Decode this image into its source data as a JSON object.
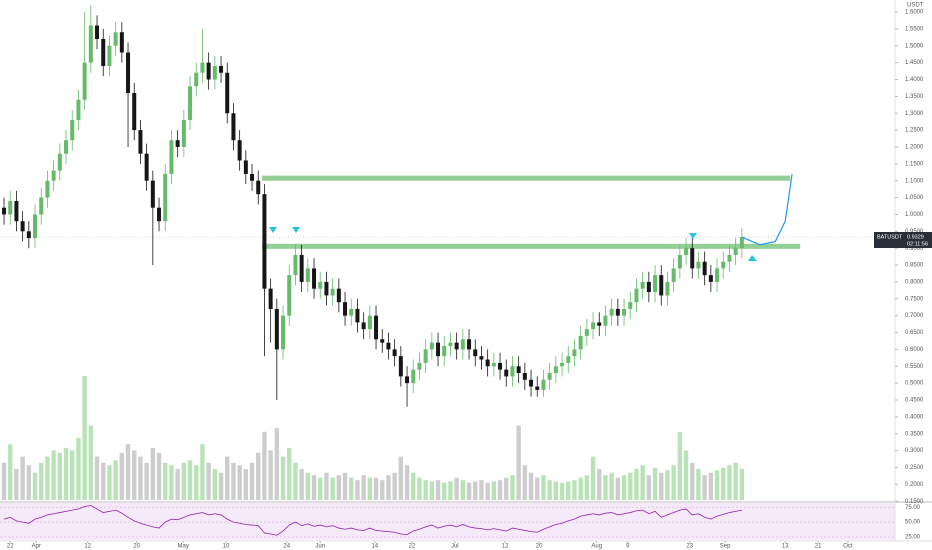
{
  "chart_data": {
    "type": "candlestick",
    "symbol": "BATUSDT",
    "currency": "USDT",
    "last_price": 0.9329,
    "countdown": "02:11:56",
    "up_color": "#66bb6a",
    "down_color": "#161616",
    "xlim": [
      -0.65,
      143.7
    ],
    "ylim": [
      0.1477,
      1.6356
    ],
    "x": [
      0,
      1,
      2,
      3,
      4,
      5,
      6,
      7,
      8,
      9,
      10,
      11,
      12,
      13,
      14,
      15,
      16,
      17,
      18,
      19,
      20,
      21,
      22,
      23,
      24,
      25,
      26,
      27,
      28,
      29,
      30,
      31,
      32,
      33,
      34,
      35,
      36,
      37,
      38,
      39,
      40,
      41,
      42,
      43,
      44,
      45,
      46,
      47,
      48,
      49,
      50,
      51,
      52,
      53,
      54,
      55,
      56,
      57,
      58,
      59,
      60,
      61,
      62,
      63,
      64,
      65,
      66,
      67,
      68,
      69,
      70,
      71,
      72,
      73,
      74,
      75,
      76,
      77,
      78,
      79,
      80,
      81,
      82,
      83,
      84,
      85,
      86,
      87,
      88,
      89,
      90,
      91,
      92,
      93,
      94,
      95,
      96,
      97,
      98,
      99,
      100,
      101,
      102,
      103,
      104,
      105,
      106,
      107,
      108,
      109,
      110,
      111,
      112,
      113,
      114,
      115,
      116,
      117,
      118,
      119
    ],
    "open": [
      1.02,
      1.0,
      1.04,
      0.98,
      0.95,
      0.93,
      1.0,
      1.05,
      1.1,
      1.13,
      1.18,
      1.22,
      1.28,
      1.34,
      1.45,
      1.56,
      1.52,
      1.44,
      1.5,
      1.54,
      1.48,
      1.36,
      1.25,
      1.18,
      1.1,
      1.02,
      0.98,
      1.12,
      1.22,
      1.2,
      1.28,
      1.38,
      1.42,
      1.45,
      1.4,
      1.44,
      1.42,
      1.3,
      1.22,
      1.16,
      1.12,
      1.1,
      1.06,
      0.78,
      0.72,
      0.6,
      0.7,
      0.82,
      0.88,
      0.8,
      0.84,
      0.78,
      0.8,
      0.76,
      0.78,
      0.74,
      0.7,
      0.72,
      0.68,
      0.66,
      0.7,
      0.63,
      0.62,
      0.6,
      0.58,
      0.52,
      0.5,
      0.54,
      0.56,
      0.6,
      0.62,
      0.58,
      0.61,
      0.62,
      0.6,
      0.63,
      0.6,
      0.58,
      0.57,
      0.55,
      0.56,
      0.54,
      0.52,
      0.55,
      0.53,
      0.51,
      0.49,
      0.48,
      0.51,
      0.53,
      0.55,
      0.56,
      0.58,
      0.6,
      0.64,
      0.66,
      0.68,
      0.67,
      0.7,
      0.72,
      0.7,
      0.72,
      0.74,
      0.78,
      0.8,
      0.77,
      0.82,
      0.76,
      0.8,
      0.84,
      0.88,
      0.9,
      0.84,
      0.86,
      0.82,
      0.8,
      0.84,
      0.86,
      0.88,
      0.9
    ],
    "high": [
      1.05,
      1.07,
      1.07,
      1.01,
      0.98,
      1.03,
      1.08,
      1.13,
      1.16,
      1.21,
      1.25,
      1.31,
      1.37,
      1.6,
      1.62,
      1.59,
      1.55,
      1.53,
      1.57,
      1.57,
      1.51,
      1.39,
      1.28,
      1.21,
      1.13,
      1.05,
      1.15,
      1.25,
      1.25,
      1.31,
      1.41,
      1.45,
      1.55,
      1.48,
      1.47,
      1.47,
      1.45,
      1.33,
      1.25,
      1.19,
      1.15,
      1.13,
      1.09,
      0.81,
      0.75,
      0.73,
      0.85,
      0.91,
      0.91,
      0.87,
      0.87,
      0.83,
      0.83,
      0.81,
      0.81,
      0.77,
      0.75,
      0.75,
      0.71,
      0.73,
      0.73,
      0.66,
      0.65,
      0.63,
      0.61,
      0.55,
      0.57,
      0.59,
      0.63,
      0.65,
      0.65,
      0.64,
      0.65,
      0.65,
      0.66,
      0.66,
      0.63,
      0.61,
      0.6,
      0.59,
      0.59,
      0.57,
      0.58,
      0.58,
      0.56,
      0.54,
      0.52,
      0.54,
      0.56,
      0.58,
      0.59,
      0.61,
      0.63,
      0.67,
      0.69,
      0.71,
      0.71,
      0.73,
      0.75,
      0.75,
      0.75,
      0.77,
      0.81,
      0.83,
      0.83,
      0.85,
      0.85,
      0.83,
      0.87,
      0.91,
      0.93,
      0.93,
      0.89,
      0.89,
      0.85,
      0.87,
      0.89,
      0.91,
      0.93,
      0.96
    ],
    "low": [
      0.97,
      0.97,
      0.95,
      0.92,
      0.9,
      0.9,
      0.97,
      1.02,
      1.07,
      1.1,
      1.15,
      1.19,
      1.25,
      1.31,
      1.42,
      1.49,
      1.41,
      1.41,
      1.47,
      1.45,
      1.2,
      1.22,
      1.15,
      1.07,
      0.85,
      0.95,
      0.95,
      1.09,
      1.17,
      1.17,
      1.25,
      1.35,
      1.39,
      1.37,
      1.37,
      1.39,
      1.27,
      1.19,
      1.13,
      1.09,
      1.07,
      1.03,
      0.58,
      0.62,
      0.45,
      0.57,
      0.67,
      0.79,
      0.77,
      0.77,
      0.75,
      0.75,
      0.73,
      0.73,
      0.71,
      0.67,
      0.67,
      0.65,
      0.63,
      0.63,
      0.6,
      0.59,
      0.57,
      0.55,
      0.49,
      0.43,
      0.47,
      0.51,
      0.53,
      0.57,
      0.55,
      0.55,
      0.58,
      0.57,
      0.57,
      0.57,
      0.55,
      0.54,
      0.52,
      0.52,
      0.51,
      0.49,
      0.49,
      0.5,
      0.48,
      0.46,
      0.46,
      0.46,
      0.48,
      0.5,
      0.52,
      0.53,
      0.55,
      0.57,
      0.61,
      0.63,
      0.64,
      0.64,
      0.67,
      0.67,
      0.67,
      0.69,
      0.71,
      0.75,
      0.74,
      0.74,
      0.73,
      0.73,
      0.77,
      0.81,
      0.85,
      0.81,
      0.81,
      0.79,
      0.77,
      0.77,
      0.81,
      0.83,
      0.85,
      0.87
    ],
    "close": [
      1.0,
      1.04,
      0.98,
      0.95,
      0.93,
      1.0,
      1.05,
      1.1,
      1.13,
      1.18,
      1.22,
      1.28,
      1.34,
      1.45,
      1.56,
      1.52,
      1.44,
      1.5,
      1.54,
      1.48,
      1.36,
      1.25,
      1.18,
      1.1,
      1.02,
      0.98,
      1.12,
      1.22,
      1.2,
      1.28,
      1.38,
      1.42,
      1.45,
      1.4,
      1.44,
      1.42,
      1.3,
      1.22,
      1.16,
      1.12,
      1.1,
      1.06,
      0.78,
      0.72,
      0.6,
      0.7,
      0.82,
      0.88,
      0.8,
      0.84,
      0.78,
      0.8,
      0.76,
      0.78,
      0.74,
      0.7,
      0.72,
      0.68,
      0.66,
      0.7,
      0.63,
      0.62,
      0.6,
      0.58,
      0.52,
      0.5,
      0.54,
      0.56,
      0.6,
      0.62,
      0.58,
      0.61,
      0.62,
      0.6,
      0.63,
      0.6,
      0.58,
      0.57,
      0.55,
      0.56,
      0.54,
      0.52,
      0.55,
      0.53,
      0.51,
      0.49,
      0.48,
      0.51,
      0.53,
      0.55,
      0.56,
      0.58,
      0.6,
      0.64,
      0.66,
      0.68,
      0.67,
      0.7,
      0.72,
      0.7,
      0.72,
      0.74,
      0.78,
      0.8,
      0.77,
      0.82,
      0.76,
      0.8,
      0.84,
      0.88,
      0.9,
      0.84,
      0.86,
      0.82,
      0.8,
      0.84,
      0.86,
      0.88,
      0.9,
      0.9329
    ],
    "yticks": [
      {
        "value": 0.15,
        "label": "0.1500"
      },
      {
        "value": 0.2,
        "label": "0.2000"
      },
      {
        "value": 0.25,
        "label": "0.2500"
      },
      {
        "value": 0.3,
        "label": "0.3000"
      },
      {
        "value": 0.35,
        "label": "0.3500"
      },
      {
        "value": 0.4,
        "label": "0.4000"
      },
      {
        "value": 0.45,
        "label": "0.4500"
      },
      {
        "value": 0.5,
        "label": "0.5000"
      },
      {
        "value": 0.55,
        "label": "0.5500"
      },
      {
        "value": 0.6,
        "label": "0.6000"
      },
      {
        "value": 0.65,
        "label": "0.6500"
      },
      {
        "value": 0.7,
        "label": "0.7000"
      },
      {
        "value": 0.75,
        "label": "0.7500"
      },
      {
        "value": 0.8,
        "label": "0.8000"
      },
      {
        "value": 0.85,
        "label": "0.8500"
      },
      {
        "value": 0.9,
        "label": "0.9000"
      },
      {
        "value": 0.95,
        "label": "0.9500"
      },
      {
        "value": 1.0,
        "label": "1.0000"
      },
      {
        "value": 1.05,
        "label": "1.0500"
      },
      {
        "value": 1.1,
        "label": "1.1000"
      },
      {
        "value": 1.15,
        "label": "1.1500"
      },
      {
        "value": 1.2,
        "label": "1.2000"
      },
      {
        "value": 1.25,
        "label": "1.2500"
      },
      {
        "value": 1.3,
        "label": "1.3000"
      },
      {
        "value": 1.35,
        "label": "1.3500"
      },
      {
        "value": 1.4,
        "label": "1.4000"
      },
      {
        "value": 1.45,
        "label": "1.4500"
      },
      {
        "value": 1.5,
        "label": "1.5000"
      },
      {
        "value": 1.55,
        "label": "1.5500"
      },
      {
        "value": 1.6,
        "label": "1.6000"
      }
    ],
    "xticks": [
      {
        "value": 1.0,
        "label": "22"
      },
      {
        "value": 5.2,
        "label": "Apr"
      },
      {
        "value": 13.5,
        "label": "12"
      },
      {
        "value": 21.4,
        "label": "20"
      },
      {
        "value": 28.9,
        "label": "May"
      },
      {
        "value": 35.8,
        "label": "10"
      },
      {
        "value": 45.6,
        "label": "24"
      },
      {
        "value": 51.0,
        "label": "Jun"
      },
      {
        "value": 59.8,
        "label": "14"
      },
      {
        "value": 65.8,
        "label": "22"
      },
      {
        "value": 72.7,
        "label": "Jul"
      },
      {
        "value": 80.8,
        "label": "12"
      },
      {
        "value": 86.3,
        "label": "20"
      },
      {
        "value": 95.6,
        "label": "Aug"
      },
      {
        "value": 100.6,
        "label": "9"
      },
      {
        "value": 110.6,
        "label": "23"
      },
      {
        "value": 116.3,
        "label": "Sep"
      },
      {
        "value": 126.0,
        "label": "13"
      },
      {
        "value": 131.3,
        "label": "21"
      },
      {
        "value": 136.1,
        "label": "Oct"
      }
    ],
    "volume": {
      "values": [
        30,
        45,
        25,
        35,
        28,
        22,
        30,
        35,
        40,
        38,
        42,
        40,
        50,
        100,
        60,
        35,
        30,
        28,
        32,
        38,
        45,
        40,
        35,
        30,
        42,
        38,
        30,
        28,
        25,
        30,
        32,
        28,
        45,
        30,
        25,
        22,
        35,
        30,
        28,
        25,
        30,
        38,
        55,
        40,
        58,
        35,
        42,
        30,
        25,
        22,
        20,
        18,
        22,
        18,
        20,
        22,
        18,
        16,
        20,
        18,
        18,
        16,
        20,
        22,
        35,
        28,
        22,
        18,
        16,
        15,
        16,
        14,
        15,
        18,
        16,
        14,
        15,
        16,
        14,
        15,
        16,
        18,
        20,
        60,
        28,
        22,
        18,
        20,
        16,
        15,
        14,
        15,
        16,
        18,
        20,
        35,
        25,
        20,
        22,
        18,
        20,
        22,
        25,
        28,
        20,
        26,
        22,
        24,
        28,
        55,
        40,
        30,
        25,
        20,
        22,
        24,
        26,
        28,
        30,
        25
      ],
      "ylim": [
        0,
        100
      ],
      "up_color": "#b9e3b7",
      "down_color": "#cdcdcd"
    },
    "rsi": {
      "values": [
        55,
        58,
        52,
        50,
        48,
        55,
        58,
        62,
        64,
        66,
        68,
        70,
        72,
        76,
        78,
        72,
        66,
        68,
        70,
        65,
        58,
        52,
        48,
        45,
        42,
        40,
        50,
        55,
        54,
        58,
        62,
        64,
        66,
        62,
        64,
        62,
        55,
        50,
        48,
        46,
        45,
        44,
        32,
        30,
        28,
        35,
        45,
        50,
        44,
        47,
        43,
        45,
        42,
        44,
        40,
        38,
        40,
        37,
        36,
        40,
        36,
        35,
        34,
        33,
        30,
        29,
        35,
        38,
        42,
        45,
        40,
        43,
        45,
        42,
        46,
        42,
        40,
        39,
        37,
        39,
        37,
        35,
        40,
        38,
        36,
        34,
        33,
        38,
        42,
        46,
        48,
        52,
        55,
        60,
        62,
        64,
        62,
        65,
        66,
        62,
        64,
        66,
        69,
        70,
        64,
        68,
        58,
        62,
        66,
        70,
        72,
        62,
        64,
        58,
        55,
        60,
        63,
        66,
        68,
        70
      ],
      "ylim": [
        20,
        82
      ],
      "yticks": [
        {
          "value": 75,
          "label": "75.00"
        },
        {
          "value": 50,
          "label": "50.00"
        },
        {
          "value": 25,
          "label": "25.00"
        }
      ],
      "color": "#8e24aa"
    },
    "zones": [
      {
        "low": 1.1,
        "high": 1.115,
        "x": [
          41.6,
          126.8
        ]
      },
      {
        "low": 0.898,
        "high": 0.913,
        "x": [
          41.6,
          128.4
        ]
      }
    ],
    "zone_color": "#81c784",
    "projection": {
      "x": [
        119,
        121.9,
        124.4,
        126.0,
        127.1
      ],
      "y": [
        0.9329,
        0.91,
        0.92,
        0.98,
        1.12
      ],
      "color": "#2196f3"
    }
  }
}
